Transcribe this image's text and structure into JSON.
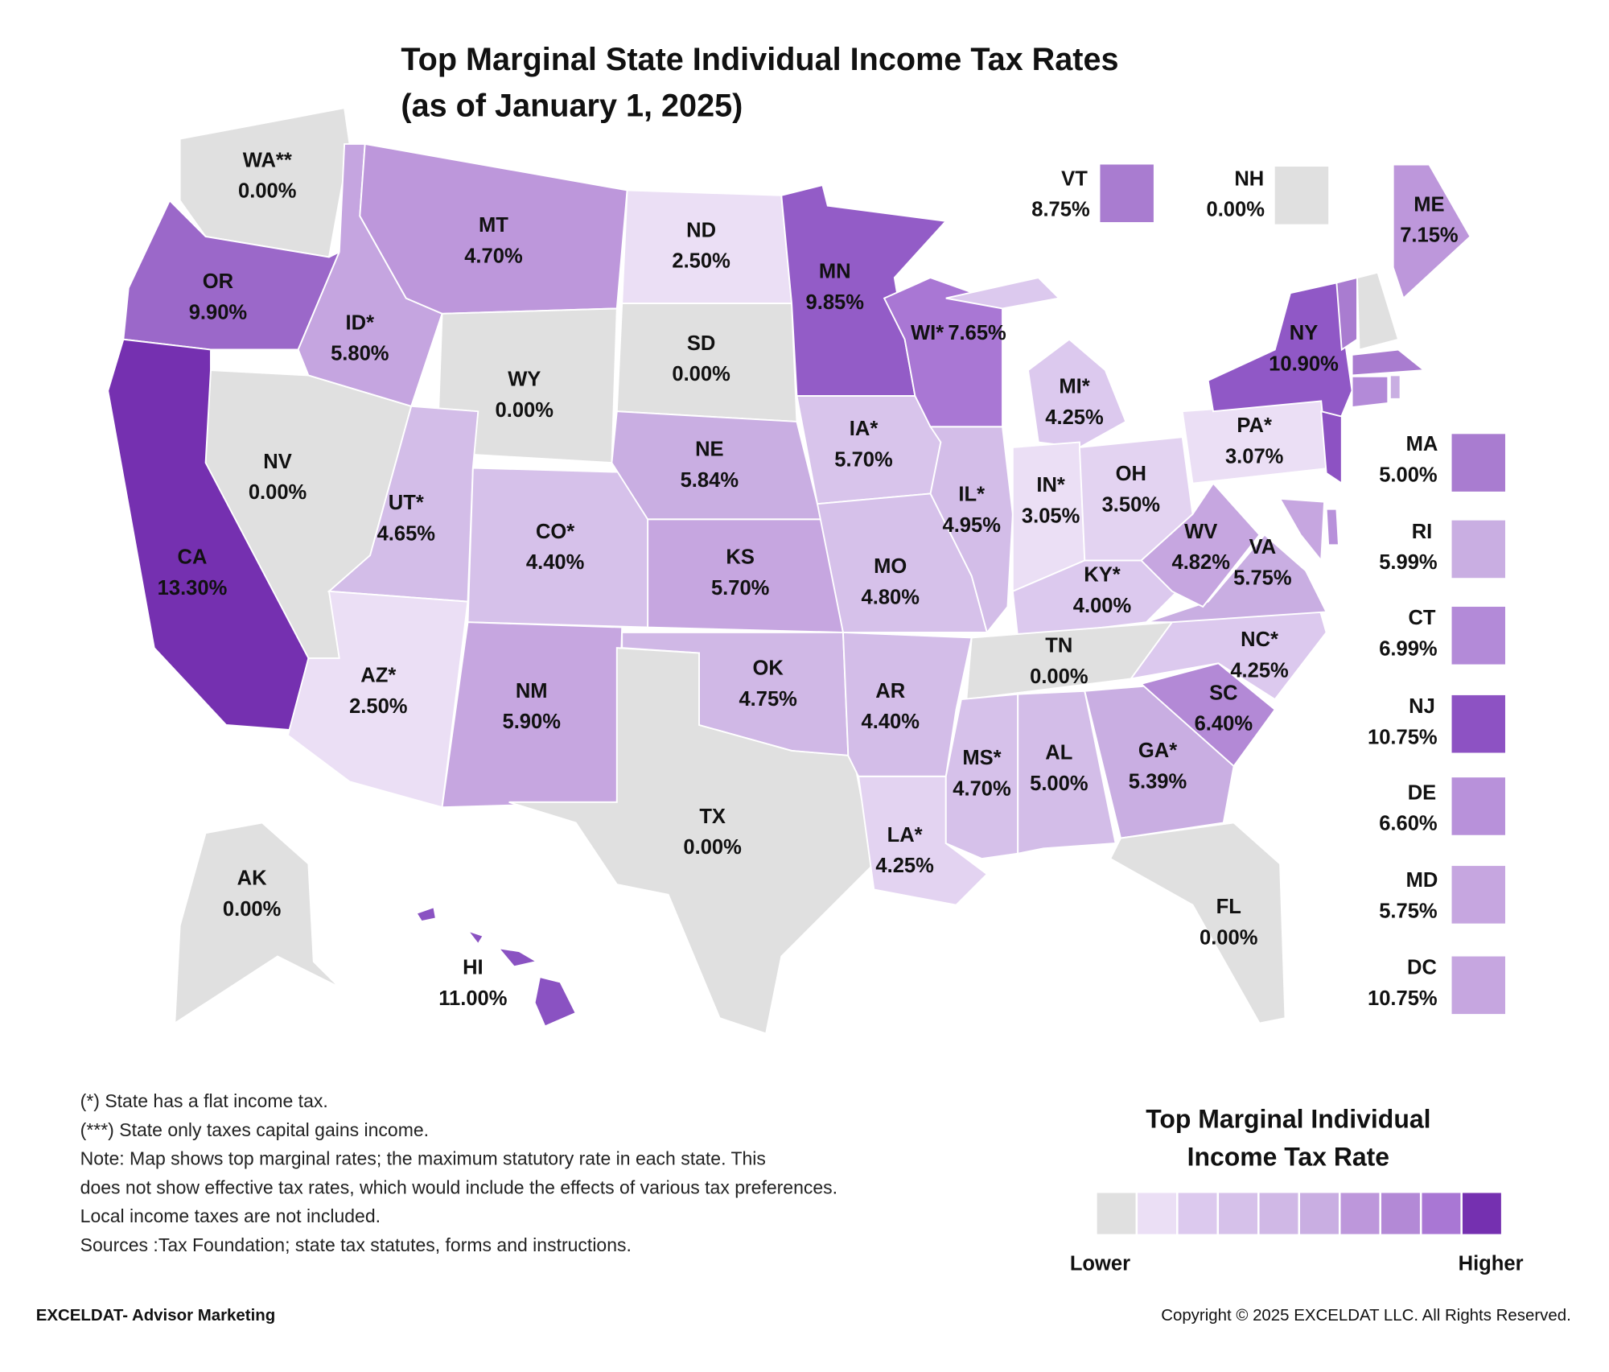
{
  "title": [
    "Top Marginal State Individual Income Tax Rates",
    "(as of January 1, 2025)"
  ],
  "states": [
    {
      "name": "WA**",
      "rate": 0,
      "rate_label": "0.00%",
      "color": "#e0e0e0"
    },
    {
      "name": "OR",
      "rate": 9.9,
      "rate_label": "9.90%",
      "color": "#9b68c9"
    },
    {
      "name": "CA",
      "rate": 13.3,
      "rate_label": "13.30%",
      "color": "#7530b0"
    },
    {
      "name": "NV",
      "rate": 0,
      "rate_label": "0.00%",
      "color": "#e0e0e0"
    },
    {
      "name": "ID*",
      "rate": 5.8,
      "rate_label": "5.80%",
      "color": "#c5a5e0"
    },
    {
      "name": "MT",
      "rate": 4.7,
      "rate_label": "4.70%",
      "color": "#bd97db"
    },
    {
      "name": "WY",
      "rate": 0,
      "rate_label": "0.00%",
      "color": "#e0e0e0"
    },
    {
      "name": "UT*",
      "rate": 4.65,
      "rate_label": "4.65%",
      "color": "#d3bde8"
    },
    {
      "name": "AZ*",
      "rate": 2.5,
      "rate_label": "2.50%",
      "color": "#ebdff5"
    },
    {
      "name": "CO*",
      "rate": 4.4,
      "rate_label": "4.40%",
      "color": "#d6c1ea"
    },
    {
      "name": "NM",
      "rate": 5.9,
      "rate_label": "5.90%",
      "color": "#c6a6e0"
    },
    {
      "name": "ND",
      "rate": 2.5,
      "rate_label": "2.50%",
      "color": "#ebdff5"
    },
    {
      "name": "SD",
      "rate": 0,
      "rate_label": "0.00%",
      "color": "#e0e0e0"
    },
    {
      "name": "NE",
      "rate": 5.84,
      "rate_label": "5.84%",
      "color": "#c9aee2"
    },
    {
      "name": "KS",
      "rate": 5.7,
      "rate_label": "5.70%",
      "color": "#c6a6e0"
    },
    {
      "name": "OK",
      "rate": 4.75,
      "rate_label": "4.75%",
      "color": "#d0b8e6"
    },
    {
      "name": "TX",
      "rate": 0,
      "rate_label": "0.00%",
      "color": "#e0e0e0"
    },
    {
      "name": "MN",
      "rate": 9.85,
      "rate_label": "9.85%",
      "color": "#935cc7"
    },
    {
      "name": "IA*",
      "rate": 5.7,
      "rate_label": "5.70%",
      "color": "#d8c4eb"
    },
    {
      "name": "MO",
      "rate": 4.8,
      "rate_label": "4.80%",
      "color": "#d6c1ea"
    },
    {
      "name": "AR",
      "rate": 4.4,
      "rate_label": "4.40%",
      "color": "#d3bde8"
    },
    {
      "name": "LA*",
      "rate": 4.25,
      "rate_label": "4.25%",
      "color": "#e3d3f1"
    },
    {
      "name": "WI*",
      "rate": 7.65,
      "rate_label": "7.65%",
      "color": "#a977d4"
    },
    {
      "name": "IL*",
      "rate": 4.95,
      "rate_label": "4.95%",
      "color": "#d3bde8"
    },
    {
      "name": "MI*",
      "rate": 4.25,
      "rate_label": "4.25%",
      "color": "#dcc9ee"
    },
    {
      "name": "IN*",
      "rate": 3.05,
      "rate_label": "3.05%",
      "color": "#ebdff5"
    },
    {
      "name": "OH",
      "rate": 3.5,
      "rate_label": "3.50%",
      "color": "#e3d3f1"
    },
    {
      "name": "KY*",
      "rate": 4,
      "rate_label": "4.00%",
      "color": "#dcc9ee"
    },
    {
      "name": "TN",
      "rate": 0,
      "rate_label": "0.00%",
      "color": "#e0e0e0"
    },
    {
      "name": "MS*",
      "rate": 4.7,
      "rate_label": "4.70%",
      "color": "#d6c1ea"
    },
    {
      "name": "AL",
      "rate": 5,
      "rate_label": "5.00%",
      "color": "#d3bde8"
    },
    {
      "name": "GA*",
      "rate": 5.39,
      "rate_label": "5.39%",
      "color": "#c9aee2"
    },
    {
      "name": "SC",
      "rate": 6.4,
      "rate_label": "6.40%",
      "color": "#b389d6"
    },
    {
      "name": "NC*",
      "rate": 4.25,
      "rate_label": "4.25%",
      "color": "#dcc9ee"
    },
    {
      "name": "VA",
      "rate": 5.75,
      "rate_label": "5.75%",
      "color": "#c9aee2"
    },
    {
      "name": "WV",
      "rate": 4.82,
      "rate_label": "4.82%",
      "color": "#c6a6e0"
    },
    {
      "name": "PA*",
      "rate": 3.07,
      "rate_label": "3.07%",
      "color": "#ebdff5"
    },
    {
      "name": "NY",
      "rate": 10.9,
      "rate_label": "10.90%",
      "color": "#9058c6"
    },
    {
      "name": "FL",
      "rate": 0,
      "rate_label": "0.00%",
      "color": "#e0e0e0"
    },
    {
      "name": "ME",
      "rate": 7.15,
      "rate_label": "7.15%",
      "color": "#bd97db"
    },
    {
      "name": "AK",
      "rate": 0,
      "rate_label": "0.00%",
      "color": "#e0e0e0"
    },
    {
      "name": "HI",
      "rate": 11,
      "rate_label": "11.00%",
      "color": "#8a52c2"
    },
    {
      "name": "VT",
      "rate": 8.75,
      "rate_label": "8.75%",
      "color": "#a97cd0"
    },
    {
      "name": "NH",
      "rate": 0,
      "rate_label": "0.00%",
      "color": "#e0e0e0"
    },
    {
      "name": "MA",
      "rate": 5,
      "rate_label": "5.00%",
      "color": "#a97cd0"
    },
    {
      "name": "RI",
      "rate": 5.99,
      "rate_label": "5.99%",
      "color": "#c9aee2"
    },
    {
      "name": "CT",
      "rate": 6.99,
      "rate_label": "6.99%",
      "color": "#b38ad8"
    },
    {
      "name": "NJ",
      "rate": 10.75,
      "rate_label": "10.75%",
      "color": "#8d52c3"
    },
    {
      "name": "DE",
      "rate": 6.6,
      "rate_label": "6.60%",
      "color": "#b891da"
    },
    {
      "name": "MD",
      "rate": 5.75,
      "rate_label": "5.75%",
      "color": "#c6a6e0"
    },
    {
      "name": "DC",
      "rate": 10.75,
      "rate_label": "10.75%",
      "color": "#c6a6e0"
    }
  ],
  "notes": [
    "(*) State has a flat income tax.",
    "(***) State only taxes capital gains income.",
    "Note: Map shows top marginal rates; the maximum statutory rate in each state. This",
    "does not show effective tax rates, which would include the effects of various tax preferences.",
    "Local income taxes are not included.",
    "Sources :Tax Foundation; state tax statutes, forms and instructions."
  ],
  "legend": {
    "title": [
      "Top Marginal Individual",
      "Income Tax Rate"
    ],
    "colors": [
      "#e0e0e0",
      "#ebdff5",
      "#dcc9ee",
      "#d6c1ea",
      "#d0b8e6",
      "#c9aee2",
      "#bd97db",
      "#b389d6",
      "#a977d4",
      "#7530b0"
    ],
    "low": "Lower",
    "high": "Higher"
  },
  "footer": {
    "left": "EXCELDAT- Advisor Marketing",
    "right": "Copyright © 2025 EXCELDAT LLC. All Rights Reserved."
  }
}
